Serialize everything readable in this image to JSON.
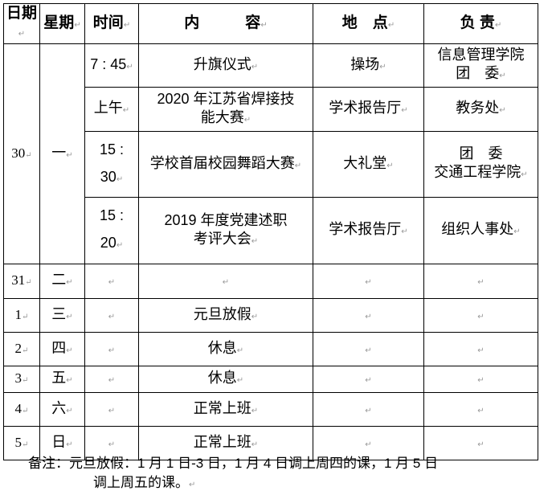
{
  "headers": [
    "日期",
    "星期",
    "时间",
    "内　　　容",
    "地　点",
    "负 责"
  ],
  "rows": [
    {
      "date": "30",
      "weekday": "一",
      "sub": [
        {
          "time": "7 : 45",
          "content": "升旗仪式",
          "place": "操场",
          "owner": "信息管理学院\n团　委"
        },
        {
          "time": "上午",
          "content": "2020 年江苏省焊接技\n能大赛",
          "place": "学术报告厅",
          "owner": "教务处"
        },
        {
          "time": "15 :\n30",
          "content": "学校首届校园舞蹈大赛",
          "place": "大礼堂",
          "owner": "团　委\n交通工程学院"
        },
        {
          "time": "15 :\n20",
          "content": "2019 年度党建述职\n考评大会",
          "place": "学术报告厅",
          "owner": "组织人事处"
        }
      ]
    },
    {
      "date": "31",
      "weekday": "二",
      "time": "",
      "content": "",
      "place": "",
      "owner": ""
    },
    {
      "date": "1",
      "weekday": "三",
      "time": "",
      "content": "元旦放假",
      "place": "",
      "owner": ""
    },
    {
      "date": "2",
      "weekday": "四",
      "time": "",
      "content": "休息",
      "place": "",
      "owner": ""
    },
    {
      "date": "3",
      "weekday": "五",
      "time": "",
      "content": "休息",
      "place": "",
      "owner": ""
    },
    {
      "date": "4",
      "weekday": "六",
      "time": "",
      "content": "正常上班",
      "place": "",
      "owner": ""
    },
    {
      "date": "5",
      "weekday": "日",
      "time": "",
      "content": "正常上班",
      "place": "",
      "owner": ""
    }
  ],
  "note": {
    "line1": "备注：元旦放假：1 月 1 日-3 日，1 月 4 日调上周四的课，1 月 5 日",
    "line2": "调上周五的课。"
  }
}
